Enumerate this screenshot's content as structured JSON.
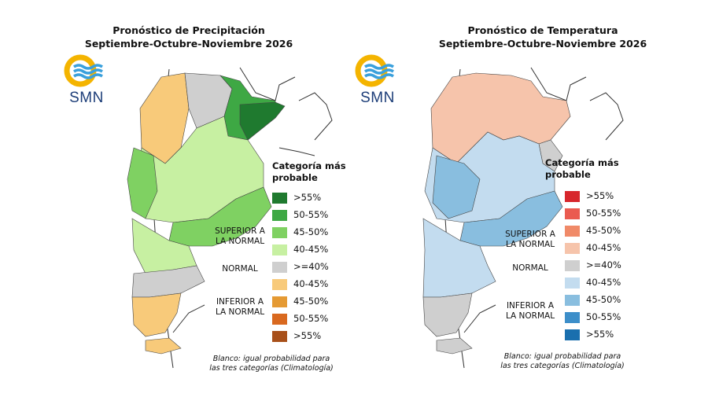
{
  "logo": {
    "text": "SMN",
    "colors": {
      "sun": "#f4b400",
      "waves": "#3aa0dc"
    }
  },
  "precip": {
    "title_line1": "Pronóstico de Precipitación",
    "title_line2": "Septiembre-Octubre-Noviembre 2026",
    "legend_title_line1": "Categoría más",
    "legend_title_line2": "probable",
    "legend": [
      {
        "label": ">55%",
        "color": "#1f7a2f"
      },
      {
        "label": "50-55%",
        "color": "#3ea844"
      },
      {
        "label": "45-50%",
        "color": "#7fd162"
      },
      {
        "label": "40-45%",
        "color": "#c7f0a2"
      },
      {
        "label": ">=40%",
        "color": "#cfcfcf"
      },
      {
        "label": "40-45%",
        "color": "#f8ca7a"
      },
      {
        "label": "45-50%",
        "color": "#e59a33"
      },
      {
        "label": "50-55%",
        "color": "#d9691f"
      },
      {
        "label": ">55%",
        "color": "#a8501a"
      }
    ],
    "group_upper_line1": "SUPERIOR A",
    "group_upper_line2": "LA NORMAL",
    "group_normal": "NORMAL",
    "group_lower_line1": "INFERIOR A",
    "group_lower_line2": "LA NORMAL",
    "note_line1": "Blanco: igual probabilidad para",
    "note_line2": "las tres categorías (Climatología)"
  },
  "temp": {
    "title_line1": "Pronóstico de Temperatura",
    "title_line2": "Septiembre-Octubre-Noviembre 2026",
    "legend_title_line1": "Categoría más",
    "legend_title_line2": "probable",
    "legend": [
      {
        "label": ">55%",
        "color": "#d7262c"
      },
      {
        "label": "50-55%",
        "color": "#ea5b50"
      },
      {
        "label": "45-50%",
        "color": "#f08a68"
      },
      {
        "label": "40-45%",
        "color": "#f6c4ab"
      },
      {
        "label": ">=40%",
        "color": "#cfcfcf"
      },
      {
        "label": "40-45%",
        "color": "#c3dcef"
      },
      {
        "label": "45-50%",
        "color": "#89bedf"
      },
      {
        "label": "50-55%",
        "color": "#3c8ec9"
      },
      {
        "label": ">55%",
        "color": "#1a6fae"
      }
    ],
    "group_upper_line1": "SUPERIOR A",
    "group_upper_line2": "LA NORMAL",
    "group_normal": "NORMAL",
    "group_lower_line1": "INFERIOR A",
    "group_lower_line2": "LA NORMAL",
    "note_line1": "Blanco: igual probabilidad para",
    "note_line2": "las tres categorías (Climatología)"
  }
}
